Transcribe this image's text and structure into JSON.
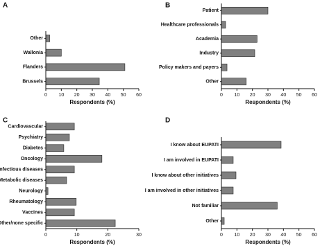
{
  "chart_data": [
    {
      "type": "bar",
      "orientation": "horizontal",
      "label": "A",
      "xlabel": "Respondents (%)",
      "categories": [
        "Other",
        "Wallonia",
        "Flanders",
        "Brussels"
      ],
      "values": [
        2.5,
        10,
        51,
        34.5
      ],
      "color": "#808080",
      "xlim": [
        0,
        60
      ],
      "xticks": [
        0,
        10,
        20,
        30,
        40,
        50,
        60
      ]
    },
    {
      "type": "bar",
      "orientation": "horizontal",
      "label": "B",
      "xlabel": "Respondents (%)",
      "categories": [
        "Patient",
        "Healthcare professionals",
        "Academia",
        "Industry",
        "Policy makers and payers",
        "Other"
      ],
      "values": [
        30,
        2.7,
        23,
        21.5,
        3.6,
        16
      ],
      "color": "#808080",
      "xlim": [
        0,
        60
      ],
      "xticks": [
        0,
        10,
        20,
        30,
        40,
        50,
        60
      ]
    },
    {
      "type": "bar",
      "orientation": "horizontal",
      "label": "C",
      "xlabel": "Respondents (%)",
      "categories": [
        "Cardiovascular",
        "Psychiatry",
        "Diabetes",
        "Oncology",
        "Infectious diseases",
        "Metabolic diseases",
        "Neurology",
        "Rheumatology",
        "Vaccines",
        "Other/none specific"
      ],
      "values": [
        9.2,
        7.6,
        5.8,
        18.1,
        9.2,
        6.7,
        0.7,
        9.8,
        9.2,
        22.4
      ],
      "color": "#808080",
      "xlim": [
        0,
        30
      ],
      "xticks": [
        0,
        10,
        20,
        30
      ]
    },
    {
      "type": "bar",
      "orientation": "horizontal",
      "label": "D",
      "xlabel": "Respondents (%)",
      "categories": [
        "I know about EUPATI",
        "I am involved in EUPATI",
        "I know about other initiatives",
        "I am involved in other initiatives",
        "Not familiar",
        "Other"
      ],
      "values": [
        38.5,
        7.6,
        9.4,
        7.6,
        36,
        1.8
      ],
      "color": "#808080",
      "xlim": [
        0,
        60
      ],
      "xticks": [
        0,
        10,
        20,
        30,
        40,
        50,
        60
      ]
    }
  ]
}
